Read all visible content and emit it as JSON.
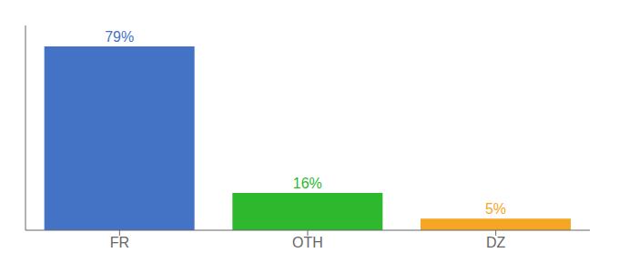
{
  "chart_data": {
    "type": "bar",
    "categories": [
      "FR",
      "OTH",
      "DZ"
    ],
    "values": [
      79,
      16,
      5
    ],
    "value_labels": [
      "79%",
      "16%",
      "5%"
    ],
    "data_labels": true,
    "colors": [
      "#4472c4",
      "#2db82d",
      "#f5a623"
    ],
    "ylim": [
      0,
      88
    ],
    "tick_labels": "x",
    "grid": false
  }
}
